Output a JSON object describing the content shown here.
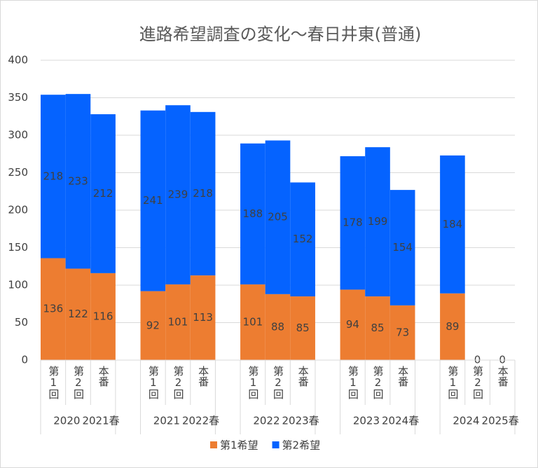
{
  "chart_data": {
    "type": "stacked-bar",
    "title": "進路希望調査の変化～春日井東(普通)",
    "categories": [
      "第1回",
      "第2回",
      "本番",
      "第1回",
      "第2回",
      "本番",
      "第1回",
      "第2回",
      "本番",
      "第1回",
      "第2回",
      "本番",
      "第1回",
      "第2回",
      "本番"
    ],
    "groups": [
      [
        "2020",
        "2021春"
      ],
      [
        "2021",
        "2022春"
      ],
      [
        "2022",
        "2023春"
      ],
      [
        "2023",
        "2024春"
      ],
      [
        "2024",
        "2025春"
      ]
    ],
    "series": [
      {
        "name": "第1希望",
        "color": "#ed7d31",
        "values": [
          136,
          122,
          116,
          92,
          101,
          113,
          101,
          88,
          85,
          94,
          85,
          73,
          89,
          0,
          0
        ]
      },
      {
        "name": "第2希望",
        "color": "#0563ff",
        "values": [
          218,
          233,
          212,
          241,
          239,
          218,
          188,
          205,
          152,
          178,
          199,
          154,
          184,
          null,
          null
        ]
      }
    ],
    "ylim": [
      0,
      400
    ],
    "yticks": [
      0,
      50,
      100,
      150,
      200,
      250,
      300,
      350,
      400
    ],
    "grid": true,
    "legend": "bottom"
  }
}
